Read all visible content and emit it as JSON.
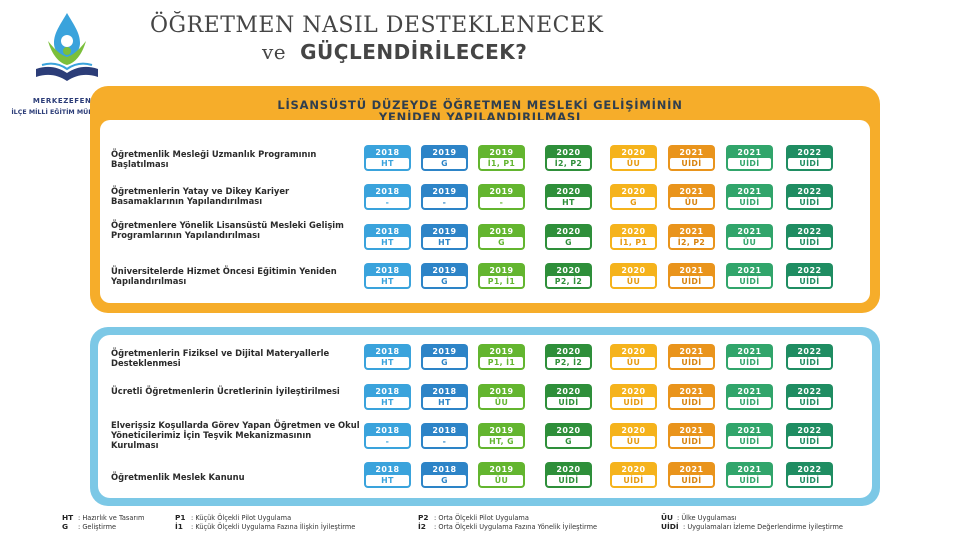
{
  "logo": {
    "line1": "MERKEZEFENDİ",
    "line2": "İLÇE MİLLİ EĞİTİM MÜDÜRLÜĞÜ",
    "icon": "merkezefendi-logo-icon",
    "colors": {
      "primary": "#2c3d78",
      "accent": "#3aa3dc",
      "leaf": "#7bbf3b"
    }
  },
  "title": {
    "line1": "ÖĞRETMEN NASIL DESTEKLENECEK",
    "line2_prefix": "ve",
    "line2_main": "GÜÇLENDİRİLECEK?"
  },
  "panel_top": {
    "header_line1": "LİSANSÜSTÜ DÜZEYDE ÖĞRETMEN MESLEKİ GELİŞİMİNİN",
    "header_line2": "YENİDEN YAPILANDIRILMASI",
    "border_color": "#f6ad2a",
    "rows": [
      {
        "label": "Öğretmenlik Mesleği Uzmanlık Programının Başlatılması",
        "cells": [
          {
            "year": "2018",
            "code": "HT"
          },
          {
            "year": "2019",
            "code": "G"
          },
          {
            "year": "2019",
            "code": "İ1, P1"
          },
          {
            "year": "2020",
            "code": "İ2, P2"
          },
          {
            "year": "2020",
            "code": "ÜU"
          },
          {
            "year": "2021",
            "code": "UİDİ"
          },
          {
            "year": "2021",
            "code": "UİDİ"
          },
          {
            "year": "2022",
            "code": "UİDİ"
          }
        ]
      },
      {
        "label": "Öğretmenlerin Yatay ve Dikey Kariyer Basamaklarının Yapılandırılması",
        "cells": [
          {
            "year": "2018",
            "code": "-"
          },
          {
            "year": "2019",
            "code": "-"
          },
          {
            "year": "2019",
            "code": "-"
          },
          {
            "year": "2020",
            "code": "HT"
          },
          {
            "year": "2020",
            "code": "G"
          },
          {
            "year": "2021",
            "code": "ÜU"
          },
          {
            "year": "2021",
            "code": "UİDİ"
          },
          {
            "year": "2022",
            "code": "UİDİ"
          }
        ]
      },
      {
        "label": "Öğretmenlere Yönelik Lisansüstü Mesleki Gelişim Programlarının Yapılandırılması",
        "cells": [
          {
            "year": "2018",
            "code": "HT"
          },
          {
            "year": "2019",
            "code": "HT"
          },
          {
            "year": "2019",
            "code": "G"
          },
          {
            "year": "2020",
            "code": "G"
          },
          {
            "year": "2020",
            "code": "İ1, P1"
          },
          {
            "year": "2021",
            "code": "İ2, P2"
          },
          {
            "year": "2021",
            "code": "ÜU"
          },
          {
            "year": "2022",
            "code": "UİDİ"
          }
        ]
      },
      {
        "label": "Üniversitelerde Hizmet Öncesi Eğitimin Yeniden Yapılandırılması",
        "cells": [
          {
            "year": "2018",
            "code": "HT"
          },
          {
            "year": "2019",
            "code": "G"
          },
          {
            "year": "2019",
            "code": "P1, İ1"
          },
          {
            "year": "2020",
            "code": "P2, İ2"
          },
          {
            "year": "2020",
            "code": "ÜU"
          },
          {
            "year": "2021",
            "code": "UİDİ"
          },
          {
            "year": "2021",
            "code": "UİDİ"
          },
          {
            "year": "2022",
            "code": "UİDİ"
          }
        ]
      }
    ]
  },
  "panel_bottom": {
    "border_color": "#7cc8e6",
    "rows": [
      {
        "label": "Öğretmenlerin Fiziksel ve Dijital Materyallerle Desteklenmesi",
        "cells": [
          {
            "year": "2018",
            "code": "HT"
          },
          {
            "year": "2019",
            "code": "G"
          },
          {
            "year": "2019",
            "code": "P1, İ1"
          },
          {
            "year": "2020",
            "code": "P2, İ2"
          },
          {
            "year": "2020",
            "code": "ÜU"
          },
          {
            "year": "2021",
            "code": "UİDİ"
          },
          {
            "year": "2021",
            "code": "UİDİ"
          },
          {
            "year": "2022",
            "code": "UİDİ"
          }
        ]
      },
      {
        "label": "Ücretli Öğretmenlerin Ücretlerinin İyileştirilmesi",
        "cells": [
          {
            "year": "2018",
            "code": "HT"
          },
          {
            "year": "2018",
            "code": "HT"
          },
          {
            "year": "2019",
            "code": "ÜU"
          },
          {
            "year": "2020",
            "code": "UİDİ"
          },
          {
            "year": "2020",
            "code": "UİDİ"
          },
          {
            "year": "2021",
            "code": "UİDİ"
          },
          {
            "year": "2021",
            "code": "UİDİ"
          },
          {
            "year": "2022",
            "code": "UİDİ"
          }
        ]
      },
      {
        "label": "Elverişsiz Koşullarda Görev Yapan Öğretmen ve Okul Yöneticilerimiz İçin Teşvik Mekanizmasının Kurulması",
        "cells": [
          {
            "year": "2018",
            "code": "-"
          },
          {
            "year": "2018",
            "code": "-"
          },
          {
            "year": "2019",
            "code": "HT, G"
          },
          {
            "year": "2020",
            "code": "G"
          },
          {
            "year": "2020",
            "code": "ÜU"
          },
          {
            "year": "2021",
            "code": "UİDİ"
          },
          {
            "year": "2021",
            "code": "UİDİ"
          },
          {
            "year": "2022",
            "code": "UİDİ"
          }
        ]
      },
      {
        "label": "Öğretmenlik Meslek Kanunu",
        "cells": [
          {
            "year": "2018",
            "code": "HT"
          },
          {
            "year": "2018",
            "code": "G"
          },
          {
            "year": "2019",
            "code": "ÜU"
          },
          {
            "year": "2020",
            "code": "UİDİ"
          },
          {
            "year": "2020",
            "code": "UİDİ"
          },
          {
            "year": "2021",
            "code": "UİDİ"
          },
          {
            "year": "2021",
            "code": "UİDİ"
          },
          {
            "year": "2022",
            "code": "UİDİ"
          }
        ]
      }
    ]
  },
  "cell_colors": [
    "#3aa3dc",
    "#2d84c7",
    "#63b52f",
    "#2e8f3a",
    "#f5b31c",
    "#e9941c",
    "#31a56b",
    "#1f8d62"
  ],
  "legend": [
    {
      "code": "HT",
      "text": ": Hazırlık ve Tasarım"
    },
    {
      "code": "G",
      "text": ": Geliştirme"
    },
    {
      "code": "P1",
      "text": ": Küçük Ölçekli Pilot Uygulama"
    },
    {
      "code": "İ1",
      "text": ": Küçük Ölçekli Uygulama Fazına İlişkin İyileştirme"
    },
    {
      "code": "P2",
      "text": ": Orta Ölçekli Pilot Uygulama"
    },
    {
      "code": "İ2",
      "text": ": Orta Ölçekli Uygulama Fazına Yönelik İyileştirme"
    },
    {
      "code": "ÜU",
      "text": ": Ülke Uygulaması"
    },
    {
      "code": "UİDİ",
      "text": ": Uygulamaları İzleme Değerlendirme İyileştirme"
    }
  ]
}
